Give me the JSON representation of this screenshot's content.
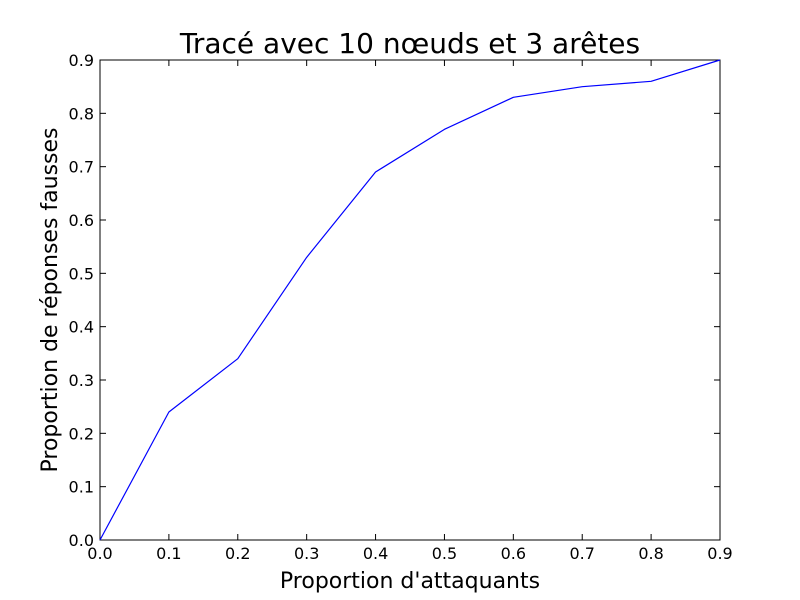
{
  "chart_data": {
    "type": "line",
    "title": "Tracé avec 10 nœuds et 3 arêtes",
    "xlabel": "Proportion d'attaquants",
    "ylabel": "Proportion de réponses fausses",
    "xlim": [
      0.0,
      0.9
    ],
    "ylim": [
      0.0,
      0.9
    ],
    "x_ticks": [
      "0.0",
      "0.1",
      "0.2",
      "0.3",
      "0.4",
      "0.5",
      "0.6",
      "0.7",
      "0.8",
      "0.9"
    ],
    "y_ticks": [
      "0.0",
      "0.1",
      "0.2",
      "0.3",
      "0.4",
      "0.5",
      "0.6",
      "0.7",
      "0.8",
      "0.9"
    ],
    "grid": false,
    "series": [
      {
        "x": [
          0.0,
          0.1,
          0.2,
          0.3,
          0.4,
          0.5,
          0.6,
          0.7,
          0.8,
          0.9
        ],
        "values": [
          0.0,
          0.24,
          0.34,
          0.53,
          0.69,
          0.77,
          0.83,
          0.85,
          0.86,
          0.9
        ],
        "color": "#0000ff"
      }
    ]
  }
}
